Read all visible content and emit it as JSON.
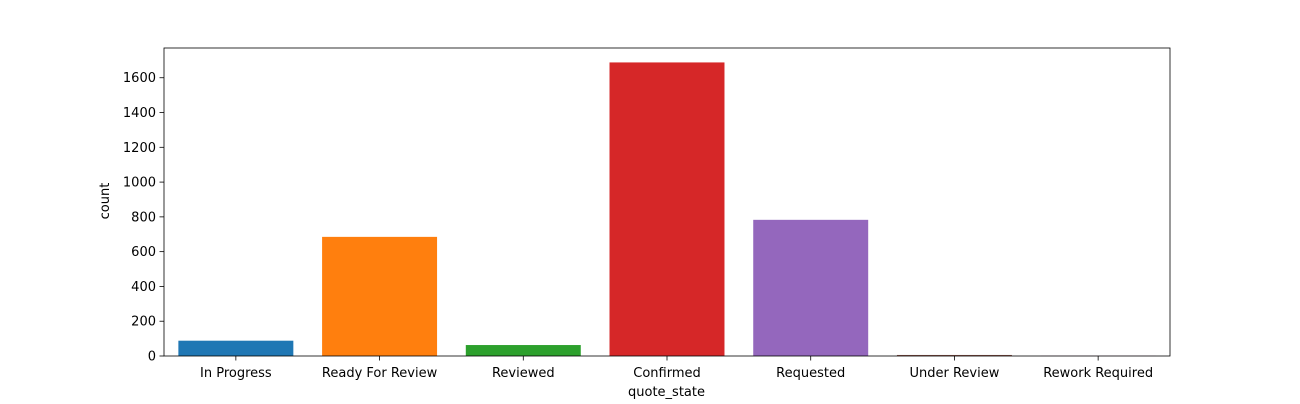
{
  "chart_data": {
    "type": "bar",
    "categories": [
      "In Progress",
      "Ready For Review",
      "Reviewed",
      "Confirmed",
      "Requested",
      "Under Review",
      "Rework Required"
    ],
    "values": [
      88,
      685,
      63,
      1688,
      783,
      6,
      1
    ],
    "colors": [
      "#1f77b4",
      "#ff7f0e",
      "#2ca02c",
      "#d62728",
      "#9467bd",
      "#8c564b",
      "#e377c2"
    ],
    "title": "",
    "xlabel": "quote_state",
    "ylabel": "count",
    "ylim": [
      0,
      1771
    ],
    "yticks": [
      0,
      200,
      400,
      600,
      800,
      1000,
      1200,
      1400,
      1600
    ],
    "grid": false,
    "legend": "none"
  }
}
